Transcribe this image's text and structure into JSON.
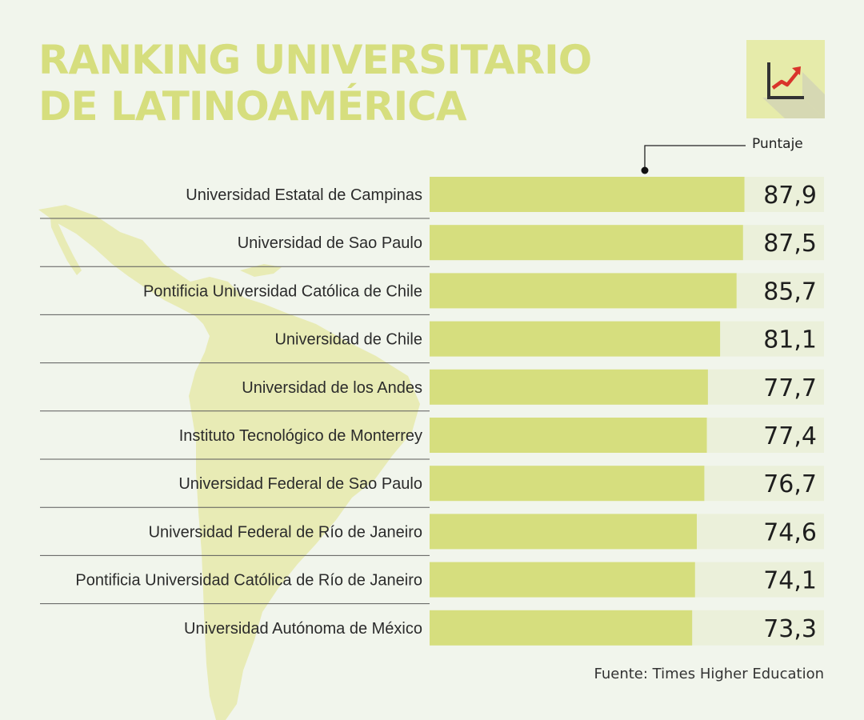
{
  "title": {
    "line1": "RANKING UNIVERSITARIO",
    "line2": "DE LATINOAMÉRICA"
  },
  "icon": "chart-growth-icon",
  "colors": {
    "bar": "#d6de7e",
    "track": "#ebf0da",
    "title": "#d6de7e",
    "map": "#e8ebb5",
    "arrow": "#d9342b"
  },
  "legend_label": "Puntaje",
  "source": "Fuente: Times Higher Education",
  "chart_data": {
    "type": "bar",
    "orientation": "horizontal",
    "title": "RANKING UNIVERSITARIO DE LATINOAMÉRICA",
    "value_label": "Puntaje",
    "xlim": [
      0,
      100
    ],
    "categories": [
      "Universidad Estatal de Campinas",
      "Universidad de Sao Paulo",
      "Pontificia Universidad Católica de Chile",
      "Universidad de Chile",
      "Universidad de los Andes",
      "Instituto Tecnológico de Monterrey",
      "Universidad Federal de Sao Paulo",
      "Universidad Federal de Río de Janeiro",
      "Pontificia Universidad Católica de Río de Janeiro",
      "Universidad Autónoma de México"
    ],
    "values": [
      87.9,
      87.5,
      85.7,
      81.1,
      77.7,
      77.4,
      76.7,
      74.6,
      74.1,
      73.3
    ],
    "value_labels": [
      "87,9",
      "87,5",
      "85,7",
      "81,1",
      "77,7",
      "77,4",
      "76,7",
      "74,6",
      "74,1",
      "73,3"
    ]
  }
}
